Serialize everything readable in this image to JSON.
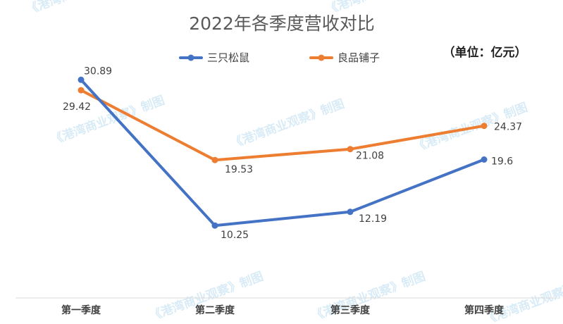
{
  "chart_data": {
    "type": "line",
    "title": "2022年各季度营收对比",
    "unit_note": "（单位：亿元）",
    "categories": [
      "第一季度",
      "第二季度",
      "第三季度",
      "第四季度"
    ],
    "series": [
      {
        "name": "三只松鼠",
        "color": "#4472C4",
        "values": [
          30.89,
          10.25,
          12.19,
          19.6
        ],
        "labels": [
          "30.89",
          "10.25",
          "12.19",
          "19.6"
        ]
      },
      {
        "name": "良品铺子",
        "color": "#ED7D31",
        "values": [
          29.42,
          19.53,
          21.08,
          24.37
        ],
        "labels": [
          "29.42",
          "19.53",
          "21.08",
          "24.37"
        ]
      }
    ],
    "ylim": [
      0,
      40
    ],
    "grid": false,
    "legend_position": "top-center"
  },
  "watermark": "《港湾商业观察》制图"
}
